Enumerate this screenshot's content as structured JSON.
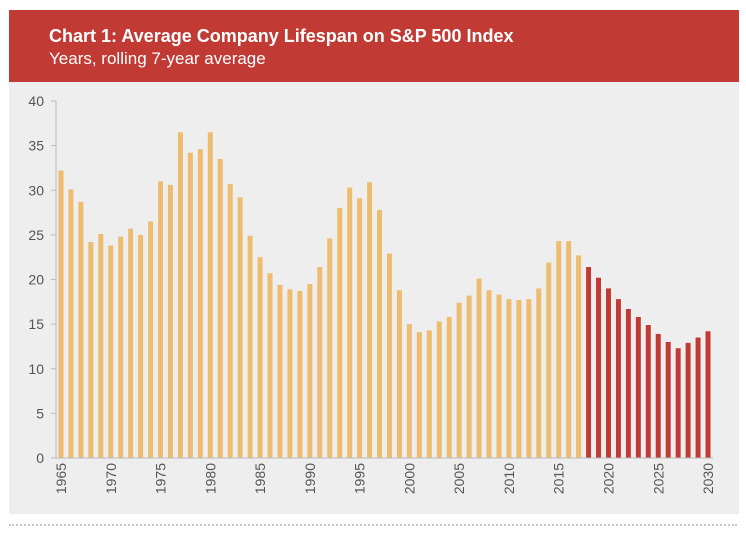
{
  "header": {
    "title": "Chart 1: Average Company Lifespan on S&P 500 Index",
    "subtitle": "Years, rolling 7-year average"
  },
  "colors": {
    "banner": "#c23a34",
    "historical_bar": "#eebc6e",
    "forecast_bar": "#c23a34",
    "background": "#eeeeee"
  },
  "chart_data": {
    "type": "bar",
    "x": [
      1965,
      1966,
      1967,
      1968,
      1969,
      1970,
      1971,
      1972,
      1973,
      1974,
      1975,
      1976,
      1977,
      1978,
      1979,
      1980,
      1981,
      1982,
      1983,
      1984,
      1985,
      1986,
      1987,
      1988,
      1989,
      1990,
      1991,
      1992,
      1993,
      1994,
      1995,
      1996,
      1997,
      1998,
      1999,
      2000,
      2001,
      2002,
      2003,
      2004,
      2005,
      2006,
      2007,
      2008,
      2009,
      2010,
      2011,
      2012,
      2013,
      2014,
      2015,
      2016,
      2017,
      2018,
      2019,
      2020,
      2021,
      2022,
      2023,
      2024,
      2025,
      2026,
      2027,
      2028,
      2029,
      2030
    ],
    "series": [
      {
        "values": [
          32.2,
          30.1,
          28.7,
          24.2,
          25.1,
          23.8,
          24.8,
          25.7,
          25.0,
          26.5,
          31.0,
          30.6,
          36.5,
          34.2,
          34.6,
          36.5,
          33.5,
          30.7,
          29.2,
          24.9,
          22.5,
          20.7,
          19.4,
          18.9,
          18.7,
          19.5,
          21.4,
          24.6,
          28.0,
          30.3,
          29.1,
          30.9,
          27.8,
          22.9,
          18.8,
          15.0,
          14.1,
          14.3,
          15.3,
          15.8,
          17.4,
          18.2,
          20.1,
          18.8,
          18.3,
          17.8,
          17.7,
          17.8,
          19.0,
          21.9,
          24.3,
          24.3,
          22.7,
          null,
          null,
          null,
          null,
          null,
          null,
          null,
          null,
          null,
          null,
          null,
          null,
          null
        ]
      },
      {
        "values": [
          null,
          null,
          null,
          null,
          null,
          null,
          null,
          null,
          null,
          null,
          null,
          null,
          null,
          null,
          null,
          null,
          null,
          null,
          null,
          null,
          null,
          null,
          null,
          null,
          null,
          null,
          null,
          null,
          null,
          null,
          null,
          null,
          null,
          null,
          null,
          null,
          null,
          null,
          null,
          null,
          null,
          null,
          null,
          null,
          null,
          null,
          null,
          null,
          null,
          null,
          null,
          null,
          null,
          21.4,
          20.2,
          19.0,
          17.8,
          16.7,
          15.8,
          14.9,
          13.9,
          13.0,
          12.3,
          12.9,
          13.5,
          14.2
        ]
      }
    ],
    "yticks": [
      0,
      5,
      10,
      15,
      20,
      25,
      30,
      35,
      40
    ],
    "xticks": [
      1965,
      1970,
      1975,
      1980,
      1985,
      1990,
      1995,
      2000,
      2005,
      2010,
      2015,
      2020,
      2025,
      2030
    ],
    "ylim": [
      0,
      40
    ],
    "grid": false,
    "legend": "none"
  }
}
